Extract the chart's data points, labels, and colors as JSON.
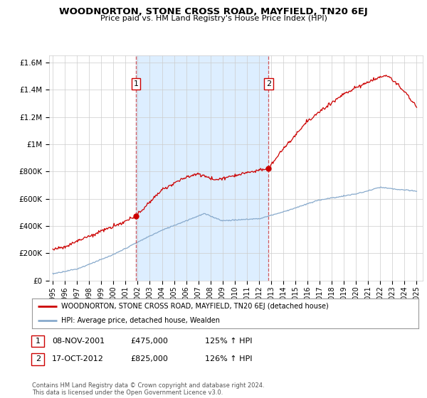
{
  "title": "WOODNORTON, STONE CROSS ROAD, MAYFIELD, TN20 6EJ",
  "subtitle": "Price paid vs. HM Land Registry's House Price Index (HPI)",
  "ylabel_ticks": [
    "£0",
    "£200K",
    "£400K",
    "£600K",
    "£800K",
    "£1M",
    "£1.2M",
    "£1.4M",
    "£1.6M"
  ],
  "ytick_values": [
    0,
    200000,
    400000,
    600000,
    800000,
    1000000,
    1200000,
    1400000,
    1600000
  ],
  "ylim": [
    0,
    1650000
  ],
  "red_color": "#cc0000",
  "blue_color": "#88aacc",
  "shade_color": "#ddeeff",
  "marker1_date_x": 2001.85,
  "marker1_price": 475000,
  "marker2_date_x": 2012.79,
  "marker2_price": 825000,
  "vline1_x": 2001.85,
  "vline2_x": 2012.79,
  "annotation1": "1",
  "annotation2": "2",
  "legend_label_red": "WOODNORTON, STONE CROSS ROAD, MAYFIELD, TN20 6EJ (detached house)",
  "legend_label_blue": "HPI: Average price, detached house, Wealden",
  "table_row1": [
    "1",
    "08-NOV-2001",
    "£475,000",
    "125% ↑ HPI"
  ],
  "table_row2": [
    "2",
    "17-OCT-2012",
    "£825,000",
    "126% ↑ HPI"
  ],
  "footer": "Contains HM Land Registry data © Crown copyright and database right 2024.\nThis data is licensed under the Open Government Licence v3.0.",
  "background_color": "#ffffff",
  "grid_color": "#cccccc",
  "xlim_start": 1994.7,
  "xlim_end": 2025.5,
  "xticks": [
    1995,
    1996,
    1997,
    1998,
    1999,
    2000,
    2001,
    2002,
    2003,
    2004,
    2005,
    2006,
    2007,
    2008,
    2009,
    2010,
    2011,
    2012,
    2013,
    2014,
    2015,
    2016,
    2017,
    2018,
    2019,
    2020,
    2021,
    2022,
    2023,
    2024,
    2025
  ]
}
